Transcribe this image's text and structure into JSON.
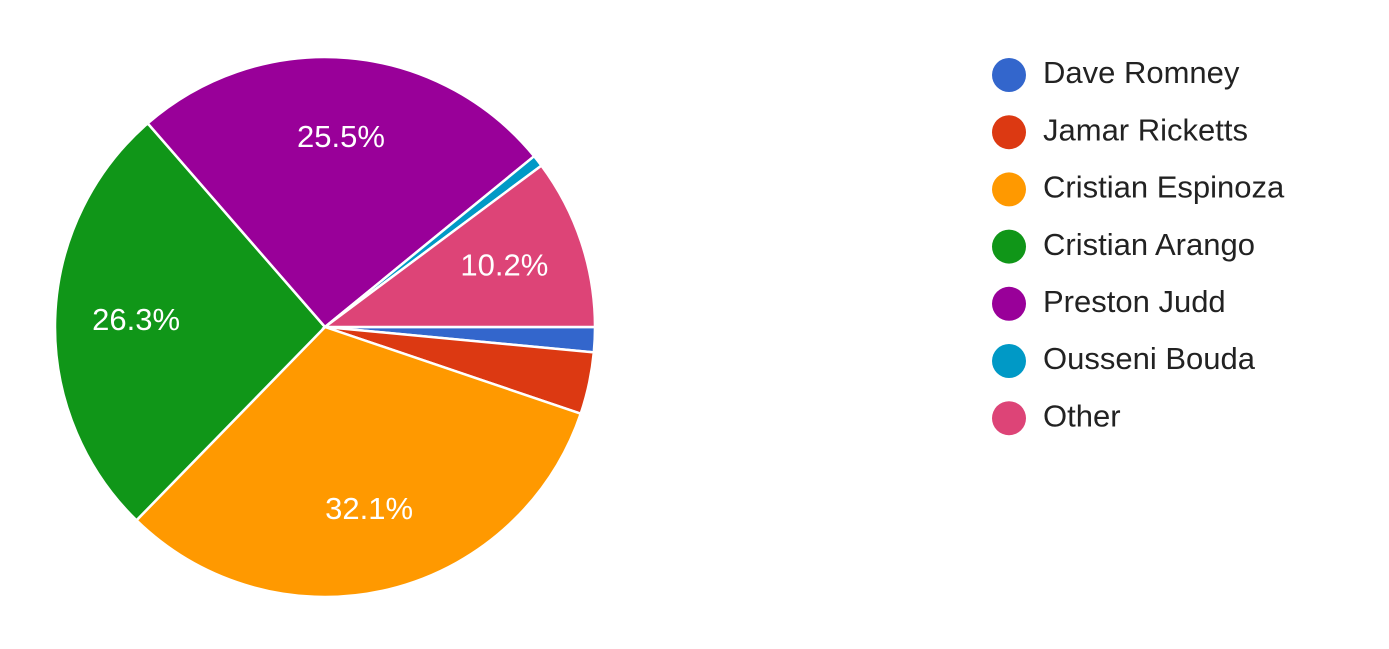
{
  "chart_data": {
    "type": "pie",
    "categories": [
      "Dave Romney",
      "Jamar Ricketts",
      "Cristian Espinoza",
      "Cristian Arango",
      "Preston Judd",
      "Ousseni Bouda",
      "Other"
    ],
    "values": [
      1.5,
      3.7,
      32.1,
      26.3,
      25.5,
      0.7,
      10.2
    ],
    "value_labels": [
      null,
      null,
      "32.1%",
      "26.3%",
      "25.5%",
      null,
      "10.2%"
    ],
    "colors": [
      "#3366cc",
      "#dc3912",
      "#ff9900",
      "#109618",
      "#990099",
      "#0099c6",
      "#dd4477"
    ],
    "legend": "right"
  }
}
